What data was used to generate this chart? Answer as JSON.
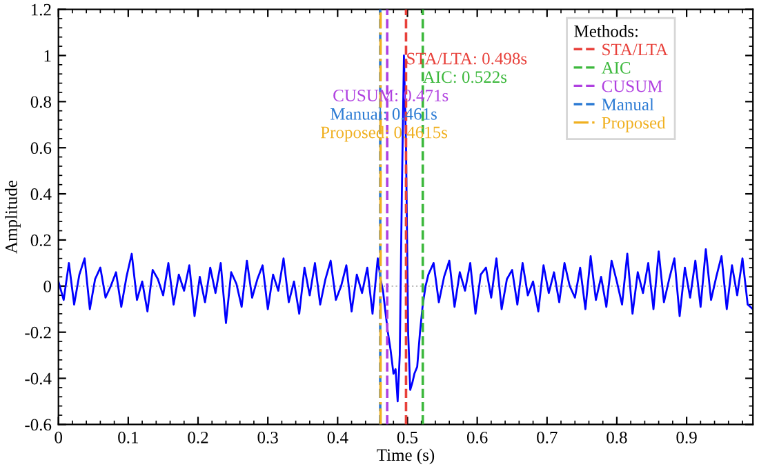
{
  "chart_data": {
    "type": "line",
    "xlabel": "Time (s)",
    "ylabel": "Amplitude",
    "legend_title": "Methods:",
    "xlim": [
      0,
      0.995
    ],
    "xticks": [
      0,
      0.1,
      0.2,
      0.3,
      0.4,
      0.5,
      0.6,
      0.7,
      0.8,
      0.9
    ],
    "ylim": [
      -0.6,
      1.2
    ],
    "yticks": [
      -0.6,
      -0.4,
      -0.2,
      0,
      0.2,
      0.4,
      0.6,
      0.8,
      1,
      1.2
    ],
    "grid": false,
    "legend": "top right",
    "marker": "none",
    "line_style": "solid",
    "series": [
      {
        "color": "#0000ff",
        "x": [
          0,
          0.0075,
          0.015,
          0.0225,
          0.03,
          0.0375,
          0.045,
          0.0525,
          0.06,
          0.0675,
          0.075,
          0.0825,
          0.09,
          0.0975,
          0.105,
          0.1125,
          0.12,
          0.1275,
          0.135,
          0.1425,
          0.15,
          0.1575,
          0.165,
          0.1725,
          0.18,
          0.1875,
          0.195,
          0.2025,
          0.21,
          0.2175,
          0.225,
          0.2325,
          0.24,
          0.2475,
          0.255,
          0.2625,
          0.27,
          0.2775,
          0.285,
          0.2925,
          0.3,
          0.3075,
          0.315,
          0.3225,
          0.33,
          0.3375,
          0.345,
          0.3525,
          0.36,
          0.3675,
          0.375,
          0.3825,
          0.39,
          0.3975,
          0.405,
          0.4125,
          0.42,
          0.4275,
          0.435,
          0.4425,
          0.45,
          0.4575,
          0.4615,
          0.465,
          0.468,
          0.472,
          0.476,
          0.48,
          0.483,
          0.486,
          0.489,
          0.492,
          0.495,
          0.498,
          0.501,
          0.504,
          0.507,
          0.51,
          0.514,
          0.518,
          0.522,
          0.526,
          0.53,
          0.5375,
          0.545,
          0.5525,
          0.56,
          0.5675,
          0.575,
          0.5825,
          0.59,
          0.5975,
          0.605,
          0.6125,
          0.62,
          0.6275,
          0.635,
          0.6425,
          0.65,
          0.6575,
          0.665,
          0.6725,
          0.68,
          0.6875,
          0.695,
          0.7025,
          0.71,
          0.7175,
          0.725,
          0.7325,
          0.74,
          0.7475,
          0.755,
          0.7625,
          0.77,
          0.7775,
          0.785,
          0.7925,
          0.8,
          0.8075,
          0.815,
          0.8225,
          0.83,
          0.8375,
          0.845,
          0.8525,
          0.86,
          0.8675,
          0.875,
          0.8825,
          0.89,
          0.8975,
          0.905,
          0.9125,
          0.92,
          0.9275,
          0.935,
          0.9425,
          0.95,
          0.9575,
          0.965,
          0.9725,
          0.98,
          0.9875,
          0.995
        ],
        "values": [
          0.02,
          -0.06,
          0.1,
          -0.08,
          0.05,
          0.12,
          -0.1,
          0.03,
          0.08,
          -0.05,
          0.0,
          0.06,
          -0.09,
          0.04,
          0.14,
          -0.06,
          0.02,
          -0.11,
          0.07,
          0.03,
          -0.04,
          0.1,
          -0.08,
          0.05,
          -0.02,
          0.09,
          -0.13,
          0.04,
          -0.07,
          0.08,
          -0.03,
          0.1,
          -0.16,
          0.06,
          0.01,
          -0.09,
          0.11,
          -0.05,
          0.03,
          0.09,
          -0.1,
          0.05,
          -0.02,
          0.12,
          -0.07,
          0.02,
          -0.12,
          0.08,
          -0.04,
          0.1,
          -0.08,
          0.03,
          0.11,
          -0.06,
          0.0,
          0.09,
          -0.11,
          0.05,
          -0.03,
          0.08,
          -0.12,
          0.12,
          0.03,
          -0.02,
          -0.1,
          -0.2,
          -0.28,
          -0.38,
          -0.36,
          -0.5,
          -0.3,
          0.4,
          1.0,
          0.6,
          -0.2,
          -0.45,
          -0.42,
          -0.38,
          -0.35,
          -0.2,
          -0.08,
          0.0,
          0.05,
          0.1,
          -0.07,
          0.04,
          0.11,
          -0.09,
          0.06,
          -0.02,
          0.1,
          -0.12,
          0.05,
          0.08,
          -0.05,
          0.12,
          -0.1,
          0.03,
          0.07,
          -0.08,
          0.1,
          -0.04,
          0.02,
          -0.11,
          0.09,
          -0.03,
          0.06,
          -0.07,
          0.1,
          0.0,
          -0.05,
          0.08,
          -0.1,
          0.13,
          -0.06,
          0.04,
          -0.09,
          0.11,
          0.02,
          -0.08,
          0.14,
          -0.12,
          0.06,
          -0.03,
          0.1,
          -0.1,
          0.15,
          -0.07,
          0.03,
          0.12,
          -0.13,
          0.08,
          -0.05,
          0.11,
          -0.09,
          0.16,
          -0.06,
          0.04,
          0.13,
          -0.1,
          0.09,
          -0.04,
          0.12,
          -0.08,
          -0.1
        ]
      }
    ],
    "ref_lines": [
      {
        "axis": "y",
        "value": 0,
        "color": "#c0c0c0",
        "line_style": "dotted"
      },
      {
        "axis": "x",
        "value": 0.498,
        "label": "STA/LTA",
        "color": "#e8403a",
        "line_style": "dashed"
      },
      {
        "axis": "x",
        "value": 0.522,
        "label": "AIC",
        "color": "#3cb83c",
        "line_style": "dashed"
      },
      {
        "axis": "x",
        "value": 0.471,
        "label": "CUSUM",
        "color": "#b040e0",
        "line_style": "dashed"
      },
      {
        "axis": "x",
        "value": 0.461,
        "label": "Manual",
        "color": "#2c7bd4",
        "line_style": "dashed"
      },
      {
        "axis": "x",
        "value": 0.4615,
        "label": "Proposed",
        "color": "#f0b020",
        "line_style": "dashdot"
      }
    ],
    "annotations": [
      {
        "text": "STA/LTA: 0.498s",
        "x": 0.498,
        "y": 0.98
      },
      {
        "text": "AIC: 0.522s",
        "x": 0.522,
        "y": 0.9
      },
      {
        "text": "CUSUM: 0.471s",
        "x": 0.471,
        "y": 0.82
      },
      {
        "text": "Manual: 0.461s",
        "x": 0.461,
        "y": 0.74
      },
      {
        "text": "Proposed: 0.4615s",
        "x": 0.4615,
        "y": 0.66
      }
    ]
  }
}
